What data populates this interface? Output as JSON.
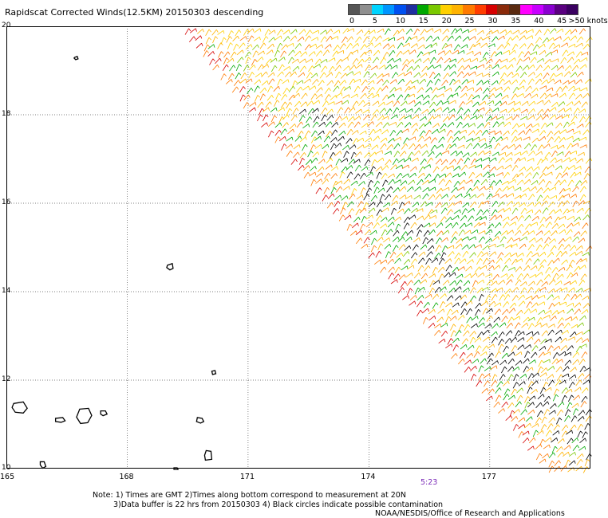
{
  "title": "Rapidscat Corrected Winds(12.5KM) 20150303 descending",
  "legend": {
    "bins": [
      {
        "label": "0",
        "color": "#555555"
      },
      {
        "label": "",
        "color": "#8f8f8f"
      },
      {
        "label": "5",
        "color": "#00d4ff"
      },
      {
        "label": "",
        "color": "#0096ff"
      },
      {
        "label": "10",
        "color": "#0050f0"
      },
      {
        "label": "",
        "color": "#1f2fa0"
      },
      {
        "label": "15",
        "color": "#00a800"
      },
      {
        "label": "",
        "color": "#7ac800"
      },
      {
        "label": "20",
        "color": "#ffd000"
      },
      {
        "label": "",
        "color": "#ffb300"
      },
      {
        "label": "25",
        "color": "#ff7a00"
      },
      {
        "label": "",
        "color": "#ff3d00"
      },
      {
        "label": "30",
        "color": "#d60000"
      },
      {
        "label": "",
        "color": "#8a2a0a"
      },
      {
        "label": "35",
        "color": "#5a2a10"
      },
      {
        "label": "",
        "color": "#ff00ff"
      },
      {
        "label": "40",
        "color": "#c800ff"
      },
      {
        "label": "",
        "color": "#8a00d0"
      },
      {
        "label": "45",
        "color": "#5a0080"
      },
      {
        "label": ">50 knots",
        "color": "#3a0060"
      }
    ]
  },
  "axes": {
    "lat_labels": [
      "20",
      "18",
      "16",
      "14",
      "12",
      "10"
    ],
    "lon_labels": [
      "165",
      "168",
      "171",
      "174",
      "177"
    ]
  },
  "pass_time": "5:23",
  "notes": [
    "Note: 1) Times are GMT 2)Times along bottom correspond to measurement at 20N",
    "3)Data buffer is 22 hrs from 20150303 4) Black circles indicate possible contamination"
  ],
  "credit": "NOAA/NESDIS/Office of Research and Applications",
  "colors": {
    "coast": "#000000",
    "grid": "#000000",
    "swath_edge": "#d60000",
    "swath_inner": "#00a800",
    "swath_main": "#ffb300",
    "rain_flag": "#000000"
  }
}
